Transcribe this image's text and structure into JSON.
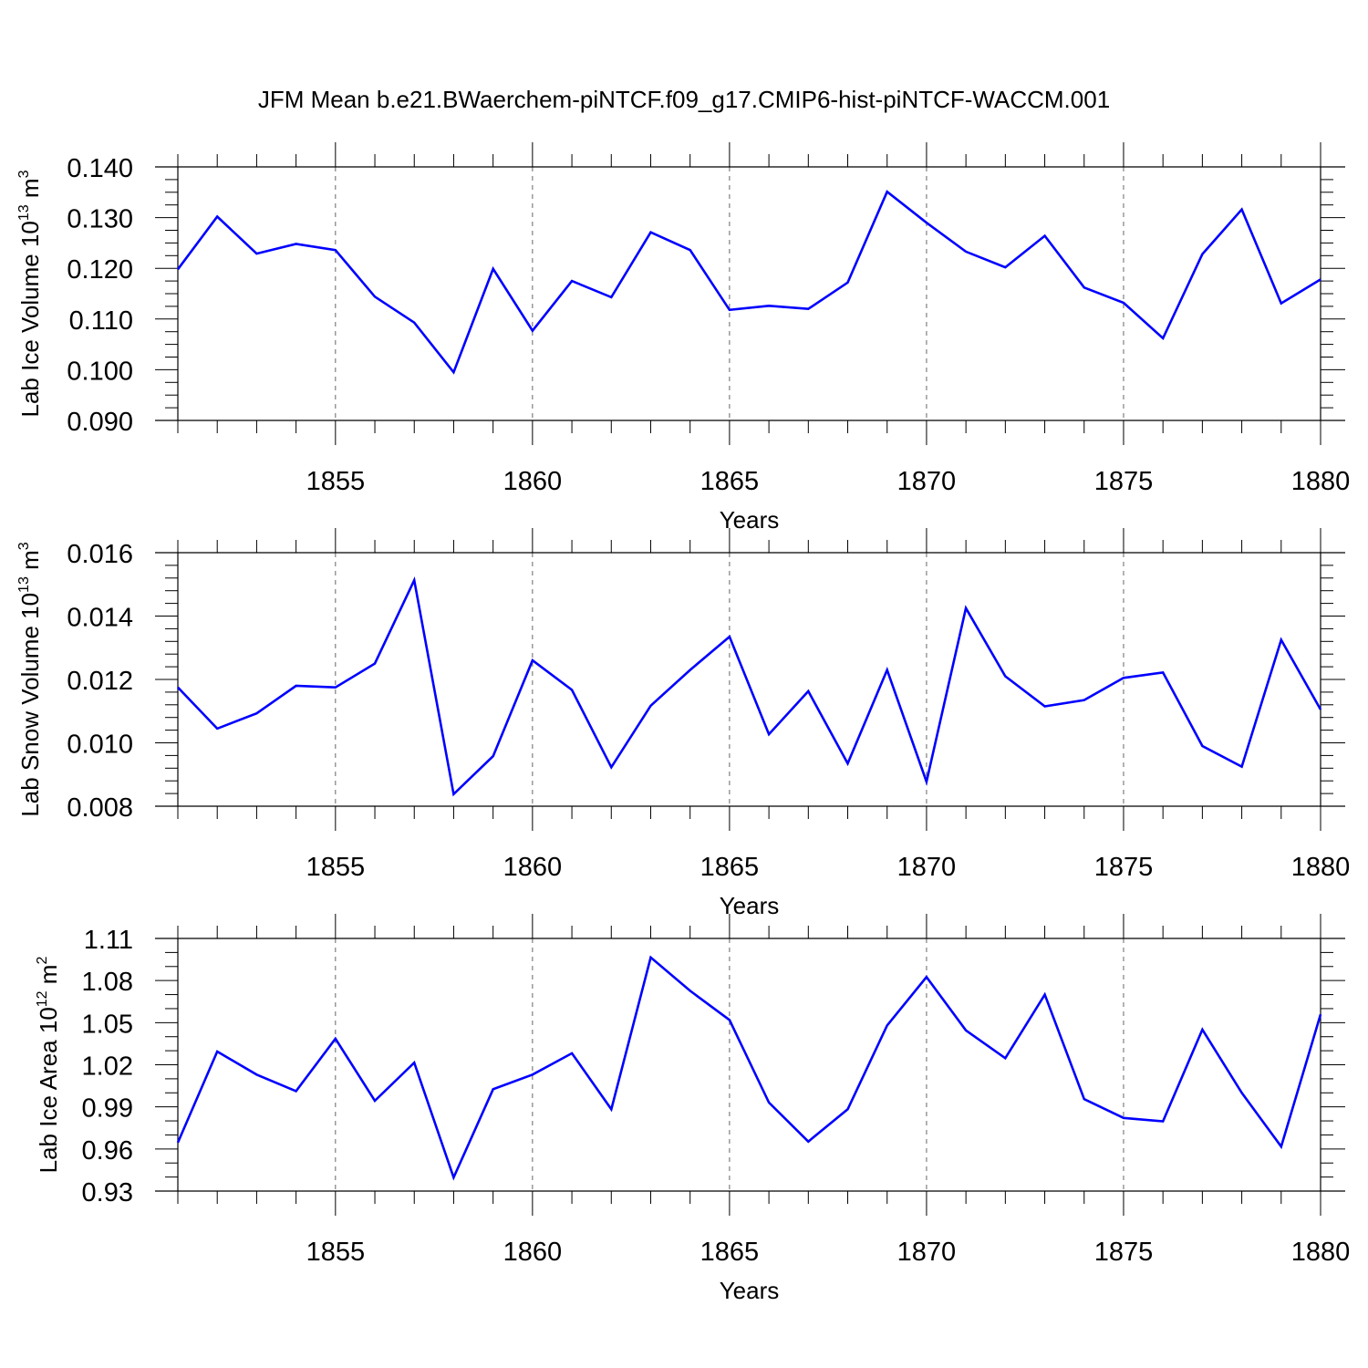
{
  "page": {
    "title": "JFM Mean b.e21.BWaerchem-piNTCF.f09_g17.CMIP6-hist-piNTCF-WACCM.001"
  },
  "chart_data": [
    {
      "type": "line",
      "ylabel": {
        "main": "Lab Ice Volume 10",
        "exponent": "13",
        "unit": " m",
        "unit_exponent": "3"
      },
      "xlabel": "Years",
      "xlim": [
        1851,
        1880
      ],
      "ylim": [
        0.09,
        0.14
      ],
      "ytick_values": [
        0.09,
        0.1,
        0.11,
        0.12,
        0.13,
        0.14
      ],
      "ytick_labels": [
        "0.090",
        "0.100",
        "0.110",
        "0.120",
        "0.130",
        "0.140"
      ],
      "yminor_step": 0.0025,
      "xtick_values": [
        1855,
        1860,
        1865,
        1870,
        1875,
        1880
      ],
      "xtick_labels": [
        "1855",
        "1860",
        "1865",
        "1870",
        "1875",
        "1880"
      ],
      "grid": "vertical dashed at major x ticks",
      "line_color": "#0000ff",
      "x": [
        1851,
        1852,
        1853,
        1854,
        1855,
        1856,
        1857,
        1858,
        1859,
        1860,
        1861,
        1862,
        1863,
        1864,
        1865,
        1866,
        1867,
        1868,
        1869,
        1870,
        1871,
        1872,
        1873,
        1874,
        1875,
        1876,
        1877,
        1878,
        1879,
        1880
      ],
      "y": [
        0.1198,
        0.1302,
        0.1229,
        0.1248,
        0.1236,
        0.1144,
        0.1093,
        0.0995,
        0.1199,
        0.1077,
        0.1175,
        0.1143,
        0.1271,
        0.1236,
        0.1118,
        0.1126,
        0.112,
        0.1172,
        0.1351,
        0.129,
        0.1233,
        0.1202,
        0.1264,
        0.1162,
        0.1132,
        0.1062,
        0.1228,
        0.1316,
        0.1131,
        0.1178
      ]
    },
    {
      "type": "line",
      "ylabel": {
        "main": "Lab Snow Volume 10",
        "exponent": "13",
        "unit": " m",
        "unit_exponent": "3"
      },
      "xlabel": "Years",
      "xlim": [
        1851,
        1880
      ],
      "ylim": [
        0.008,
        0.016
      ],
      "ytick_values": [
        0.008,
        0.01,
        0.012,
        0.014,
        0.016
      ],
      "ytick_labels": [
        "0.008",
        "0.010",
        "0.012",
        "0.014",
        "0.016"
      ],
      "yminor_step": 0.0004,
      "xtick_values": [
        1855,
        1860,
        1865,
        1870,
        1875,
        1880
      ],
      "xtick_labels": [
        "1855",
        "1860",
        "1865",
        "1870",
        "1875",
        "1880"
      ],
      "grid": "vertical dashed at major x ticks",
      "line_color": "#0000ff",
      "x": [
        1851,
        1852,
        1853,
        1854,
        1855,
        1856,
        1857,
        1858,
        1859,
        1860,
        1861,
        1862,
        1863,
        1864,
        1865,
        1866,
        1867,
        1868,
        1869,
        1870,
        1871,
        1872,
        1873,
        1874,
        1875,
        1876,
        1877,
        1878,
        1879,
        1880
      ],
      "y": [
        0.01175,
        0.01045,
        0.01093,
        0.0118,
        0.01175,
        0.0125,
        0.01513,
        0.00838,
        0.00958,
        0.0126,
        0.01167,
        0.00923,
        0.01117,
        0.0123,
        0.01335,
        0.01027,
        0.01163,
        0.00935,
        0.0123,
        0.00877,
        0.01425,
        0.0121,
        0.01115,
        0.01135,
        0.01205,
        0.01222,
        0.0099,
        0.00925,
        0.01325,
        0.01105
      ]
    },
    {
      "type": "line",
      "ylabel": {
        "main": "Lab Ice Area 10",
        "exponent": "12",
        "unit": " m",
        "unit_exponent": "2"
      },
      "xlabel": "Years",
      "xlim": [
        1851,
        1880
      ],
      "ylim": [
        0.93,
        1.11
      ],
      "ytick_values": [
        0.93,
        0.96,
        0.99,
        1.02,
        1.05,
        1.08,
        1.11
      ],
      "ytick_labels": [
        "0.93",
        "0.96",
        "0.99",
        "1.02",
        "1.05",
        "1.08",
        "1.11"
      ],
      "yminor_step": 0.01,
      "xtick_values": [
        1855,
        1860,
        1865,
        1870,
        1875,
        1880
      ],
      "xtick_labels": [
        "1855",
        "1860",
        "1865",
        "1870",
        "1875",
        "1880"
      ],
      "grid": "vertical dashed at major x ticks",
      "line_color": "#0000ff",
      "x": [
        1851,
        1852,
        1853,
        1854,
        1855,
        1856,
        1857,
        1858,
        1859,
        1860,
        1861,
        1862,
        1863,
        1864,
        1865,
        1866,
        1867,
        1868,
        1869,
        1870,
        1871,
        1872,
        1873,
        1874,
        1875,
        1876,
        1877,
        1878,
        1879,
        1880
      ],
      "y": [
        0.9645,
        1.0294,
        1.013,
        1.0012,
        1.0386,
        0.9943,
        1.0215,
        0.9397,
        1.0026,
        1.013,
        1.0282,
        0.9883,
        1.0965,
        1.0727,
        1.0519,
        0.9931,
        0.9653,
        0.9883,
        1.048,
        1.0825,
        1.0445,
        1.0247,
        1.07,
        0.9955,
        0.9821,
        0.9797,
        1.0451,
        1.0,
        0.9617,
        1.0559
      ]
    }
  ]
}
